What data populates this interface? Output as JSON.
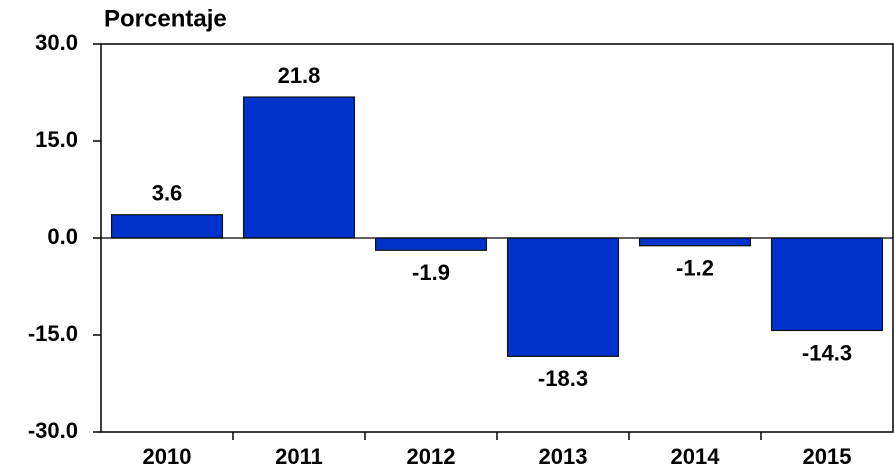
{
  "chart_data": {
    "type": "bar",
    "y_label": "Porcentaje",
    "categories": [
      "2010",
      "2011",
      "2012",
      "2013",
      "2014",
      "2015"
    ],
    "values": [
      3.6,
      21.8,
      -1.9,
      -18.3,
      -1.2,
      -14.3
    ],
    "color": "#0033cc",
    "ylim": [
      -30,
      30
    ],
    "yticks": [
      {
        "value": -30,
        "label": "-30.0"
      },
      {
        "value": -15,
        "label": "-15.0"
      },
      {
        "value": 0,
        "label": "0.0"
      },
      {
        "value": 15,
        "label": "15.0"
      },
      {
        "value": 30,
        "label": "30.0"
      }
    ],
    "grid": false
  }
}
